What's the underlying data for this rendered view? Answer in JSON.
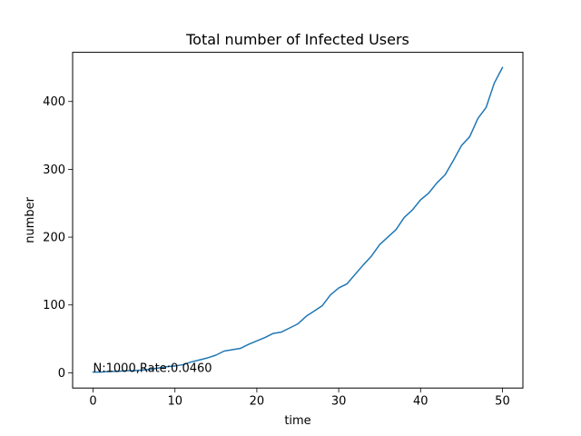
{
  "chart_data": {
    "type": "line",
    "title": "Total number of Infected Users",
    "xlabel": "time",
    "ylabel": "number",
    "annotation": "N:1000,Rate:0.0460",
    "xlim": [
      -2.5,
      52.5
    ],
    "ylim": [
      -22.5,
      472.5
    ],
    "xticks": [
      0,
      10,
      20,
      30,
      40,
      50
    ],
    "yticks": [
      0,
      100,
      200,
      300,
      400
    ],
    "grid": false,
    "series": [
      {
        "color": "#1f77b4",
        "x": [
          0,
          1,
          2,
          3,
          4,
          5,
          6,
          7,
          8,
          9,
          10,
          11,
          12,
          13,
          14,
          15,
          16,
          17,
          18,
          19,
          20,
          21,
          22,
          23,
          24,
          25,
          26,
          27,
          28,
          29,
          30,
          31,
          32,
          33,
          34,
          35,
          36,
          37,
          38,
          39,
          40,
          41,
          42,
          43,
          44,
          45,
          46,
          47,
          48,
          49,
          50
        ],
        "y": [
          1,
          1,
          2,
          2,
          3,
          3,
          4,
          5,
          7,
          9,
          10,
          12,
          16,
          19,
          22,
          26,
          32,
          34,
          36,
          42,
          47,
          52,
          58,
          60,
          66,
          72,
          83,
          91,
          99,
          115,
          125,
          131,
          145,
          159,
          172,
          189,
          200,
          211,
          229,
          240,
          255,
          265,
          280,
          292,
          313,
          335,
          348,
          375,
          391,
          427,
          450
        ]
      }
    ]
  }
}
